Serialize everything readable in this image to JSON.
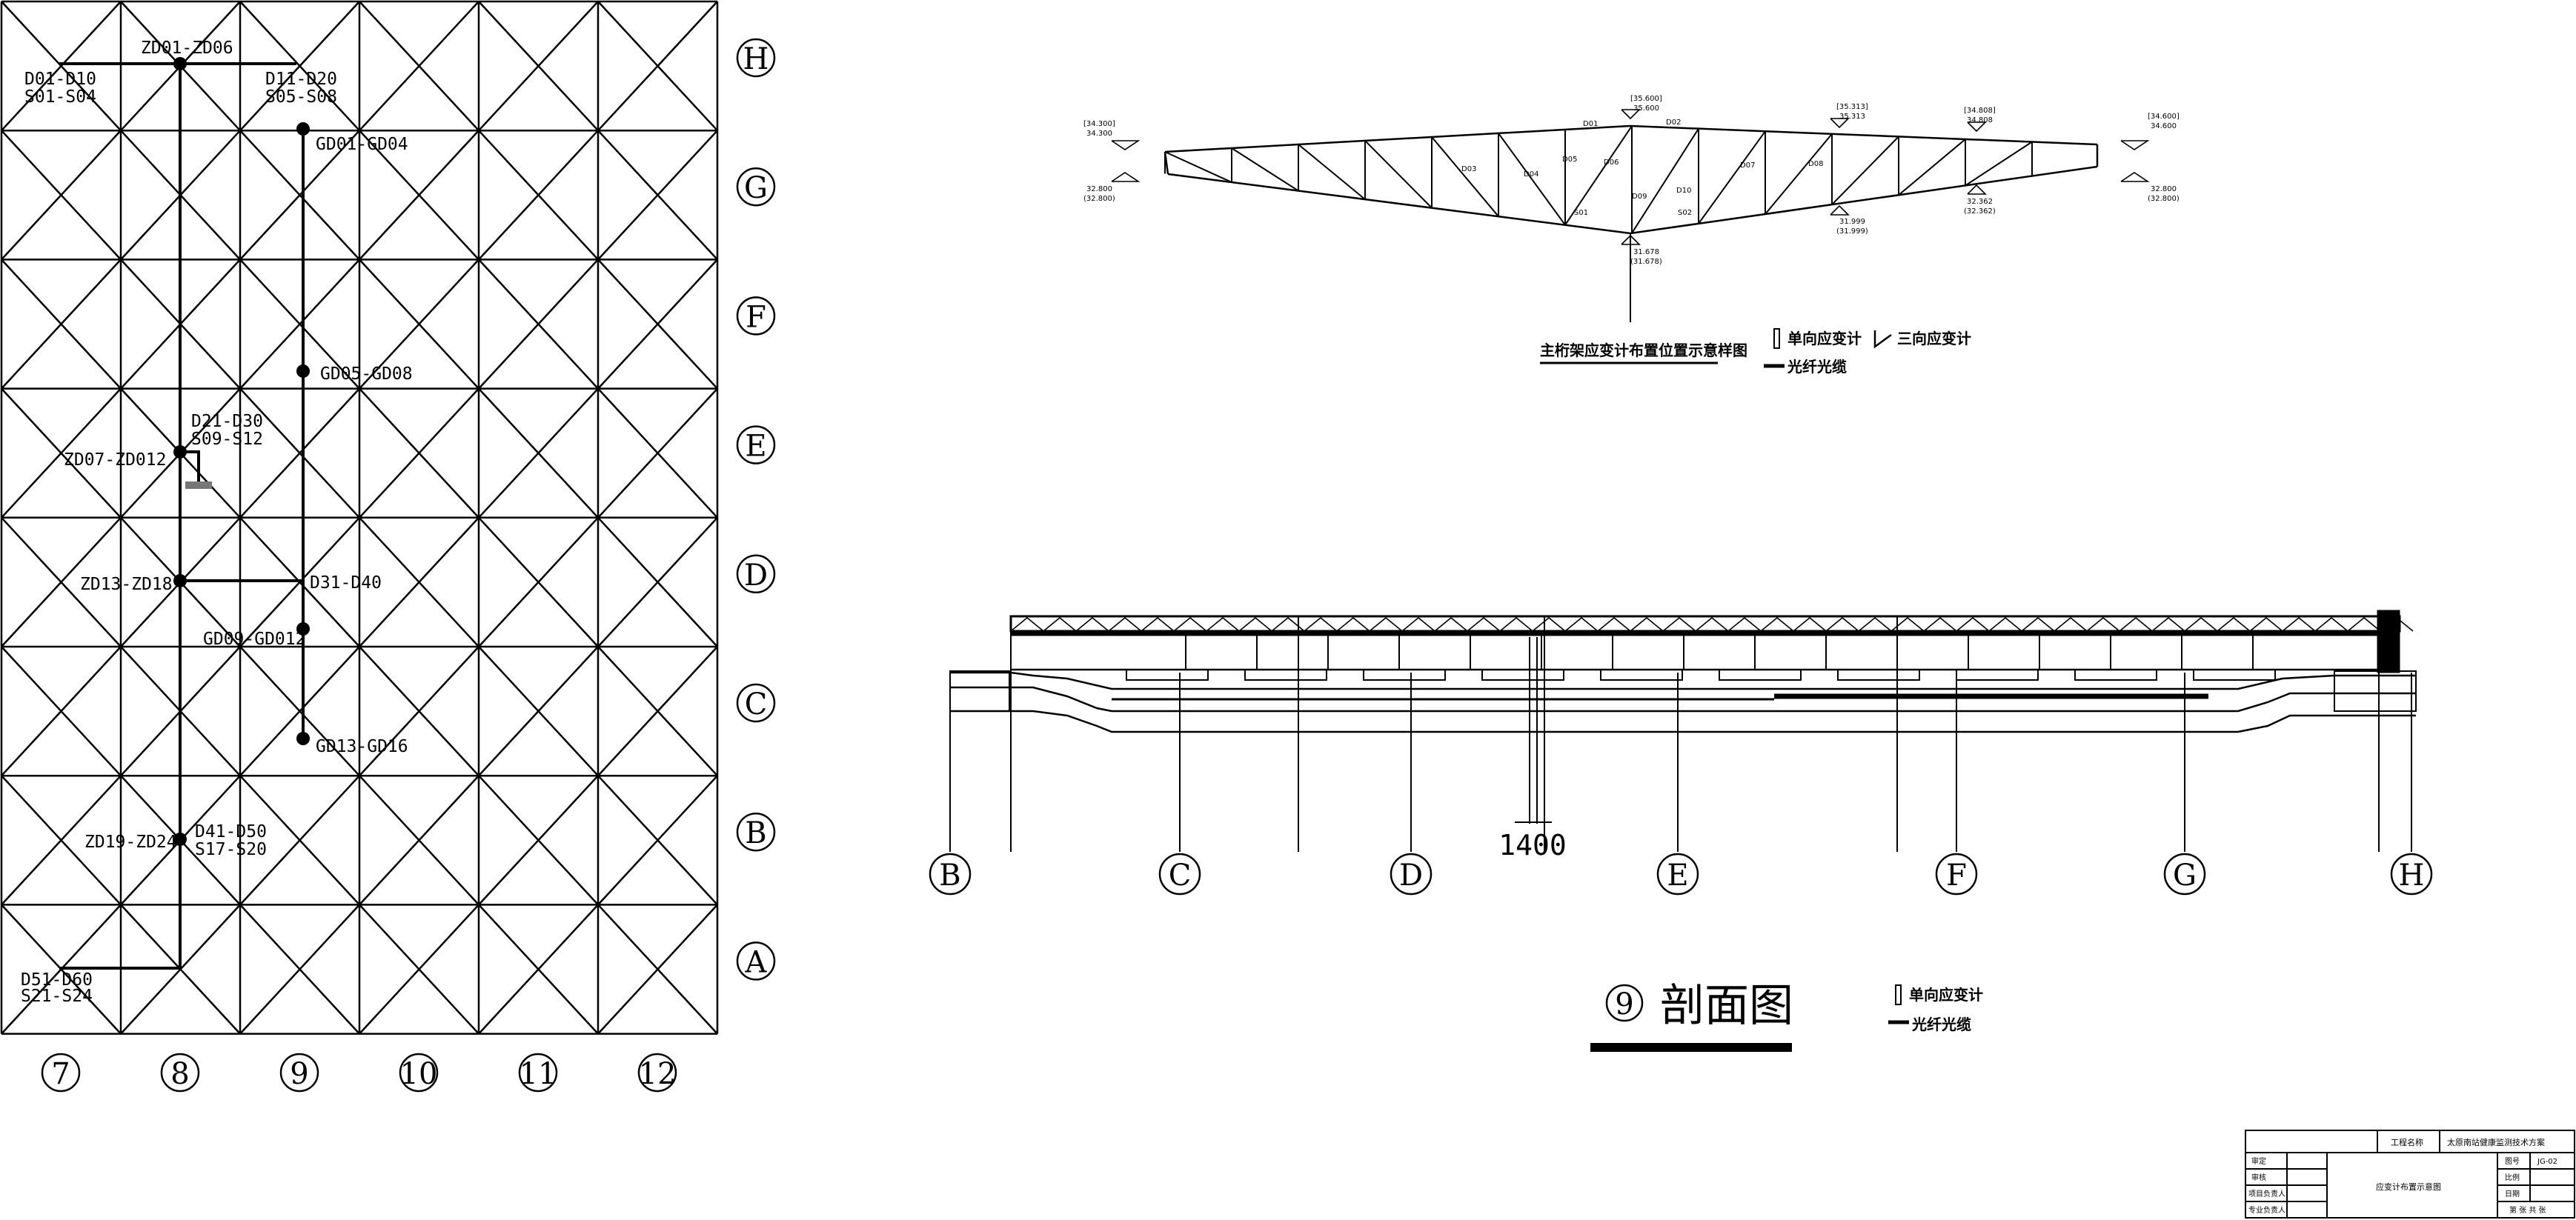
{
  "plan": {
    "columns": [
      "7",
      "8",
      "9",
      "10",
      "11",
      "12"
    ],
    "rows": [
      "H",
      "G",
      "F",
      "E",
      "D",
      "C",
      "B",
      "A"
    ],
    "labels": {
      "zd01": "ZD01-ZD06",
      "d01": "D01-D10",
      "s01": "S01-S04",
      "d11": "D11-D20",
      "s05": "S05-S08",
      "gd01": "GD01-GD04",
      "gd05": "GD05-GD08",
      "d21": "D21-D30",
      "s09": "S09-S12",
      "zd07": "ZD07-ZD012",
      "zd13": "ZD13-ZD18",
      "d31": "D31-D40",
      "gd09": "GD09-GD012",
      "gd13": "GD13-GD16",
      "zd19": "ZD19-ZD24",
      "d41": "D41-D50",
      "s17": "S17-S20",
      "d51": "D51-D60",
      "s21": "S21-S24"
    }
  },
  "truss": {
    "caption": "主桁架应变计布置位置示意样图",
    "legend_single": "单向应变计",
    "legend_triple": "三向应变计",
    "legend_fiber": "光纤光缆",
    "elev_left_top": "[34.300]",
    "elev_left_top2": "34.300",
    "elev_left_bot": "32.800",
    "elev_left_bot2": "(32.800)",
    "elev_ctr_top": "[35.600]",
    "elev_ctr_top2": "35.600",
    "elev_ctr_bot": "31.678",
    "elev_ctr_bot2": "(31.678)",
    "elev_r1_top": "[35.313]",
    "elev_r1_top2": "35.313",
    "elev_r1_bot": "31.999",
    "elev_r1_bot2": "(31.999)",
    "elev_r2_top": "[34.808]",
    "elev_r2_top2": "34.808",
    "elev_r2_bot": "32.362",
    "elev_r2_bot2": "(32.362)",
    "elev_r3_top": "[34.600]",
    "elev_r3_top2": "34.600",
    "elev_r3_bot": "32.800",
    "elev_r3_bot2": "(32.800)",
    "marks": [
      "D01",
      "D02",
      "D03",
      "D04",
      "D05",
      "D06",
      "D07",
      "D08",
      "D09",
      "D10",
      "S01",
      "S02"
    ]
  },
  "section": {
    "axes": [
      "B",
      "C",
      "D",
      "E",
      "F",
      "G",
      "H"
    ],
    "dimension": "1400",
    "title_num": "9",
    "title": "剖面图",
    "legend_single": "单向应变计",
    "legend_fiber": "光纤光缆"
  },
  "titleblock": {
    "project_label": "工程名称",
    "project_name": "太原南站健康监测技术方案",
    "drawing_title": "应变计布置示意图",
    "rows": [
      "审定",
      "审核",
      "项目负责人",
      "专业负责人"
    ],
    "no_label": "图号",
    "no_value": "JG-02",
    "ratio_label": "比例",
    "date_label": "日期",
    "footer": "第 张 共 张"
  }
}
